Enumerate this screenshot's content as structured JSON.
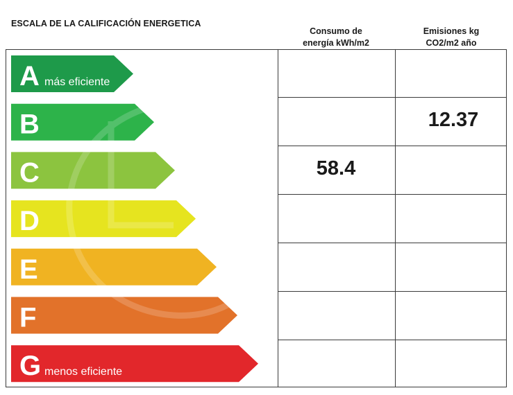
{
  "title": "ESCALA DE LA CALIFICACIÓN ENERGETICA",
  "columns": [
    {
      "line1": "Consumo de",
      "line2": "energía kWh/m2"
    },
    {
      "line1": "Emisiones kg",
      "line2": "CO2/m2 año"
    }
  ],
  "chart_data": {
    "type": "table",
    "title": "ESCALA DE LA CALIFICACIÓN ENERGETICA",
    "categories": [
      "A",
      "B",
      "C",
      "D",
      "E",
      "F",
      "G"
    ],
    "category_notes": {
      "A": "más eficiente",
      "G": "menos eficiente"
    },
    "colors": [
      "#1e9a4a",
      "#2db34a",
      "#8cc43f",
      "#e6e41f",
      "#f0b322",
      "#e2722a",
      "#e2272b"
    ],
    "series": [
      {
        "name": "Consumo de energía kWh/m2",
        "category": "C",
        "value": "58.4"
      },
      {
        "name": "Emisiones kg CO2/m2 año",
        "category": "B",
        "value": "12.37"
      }
    ]
  }
}
